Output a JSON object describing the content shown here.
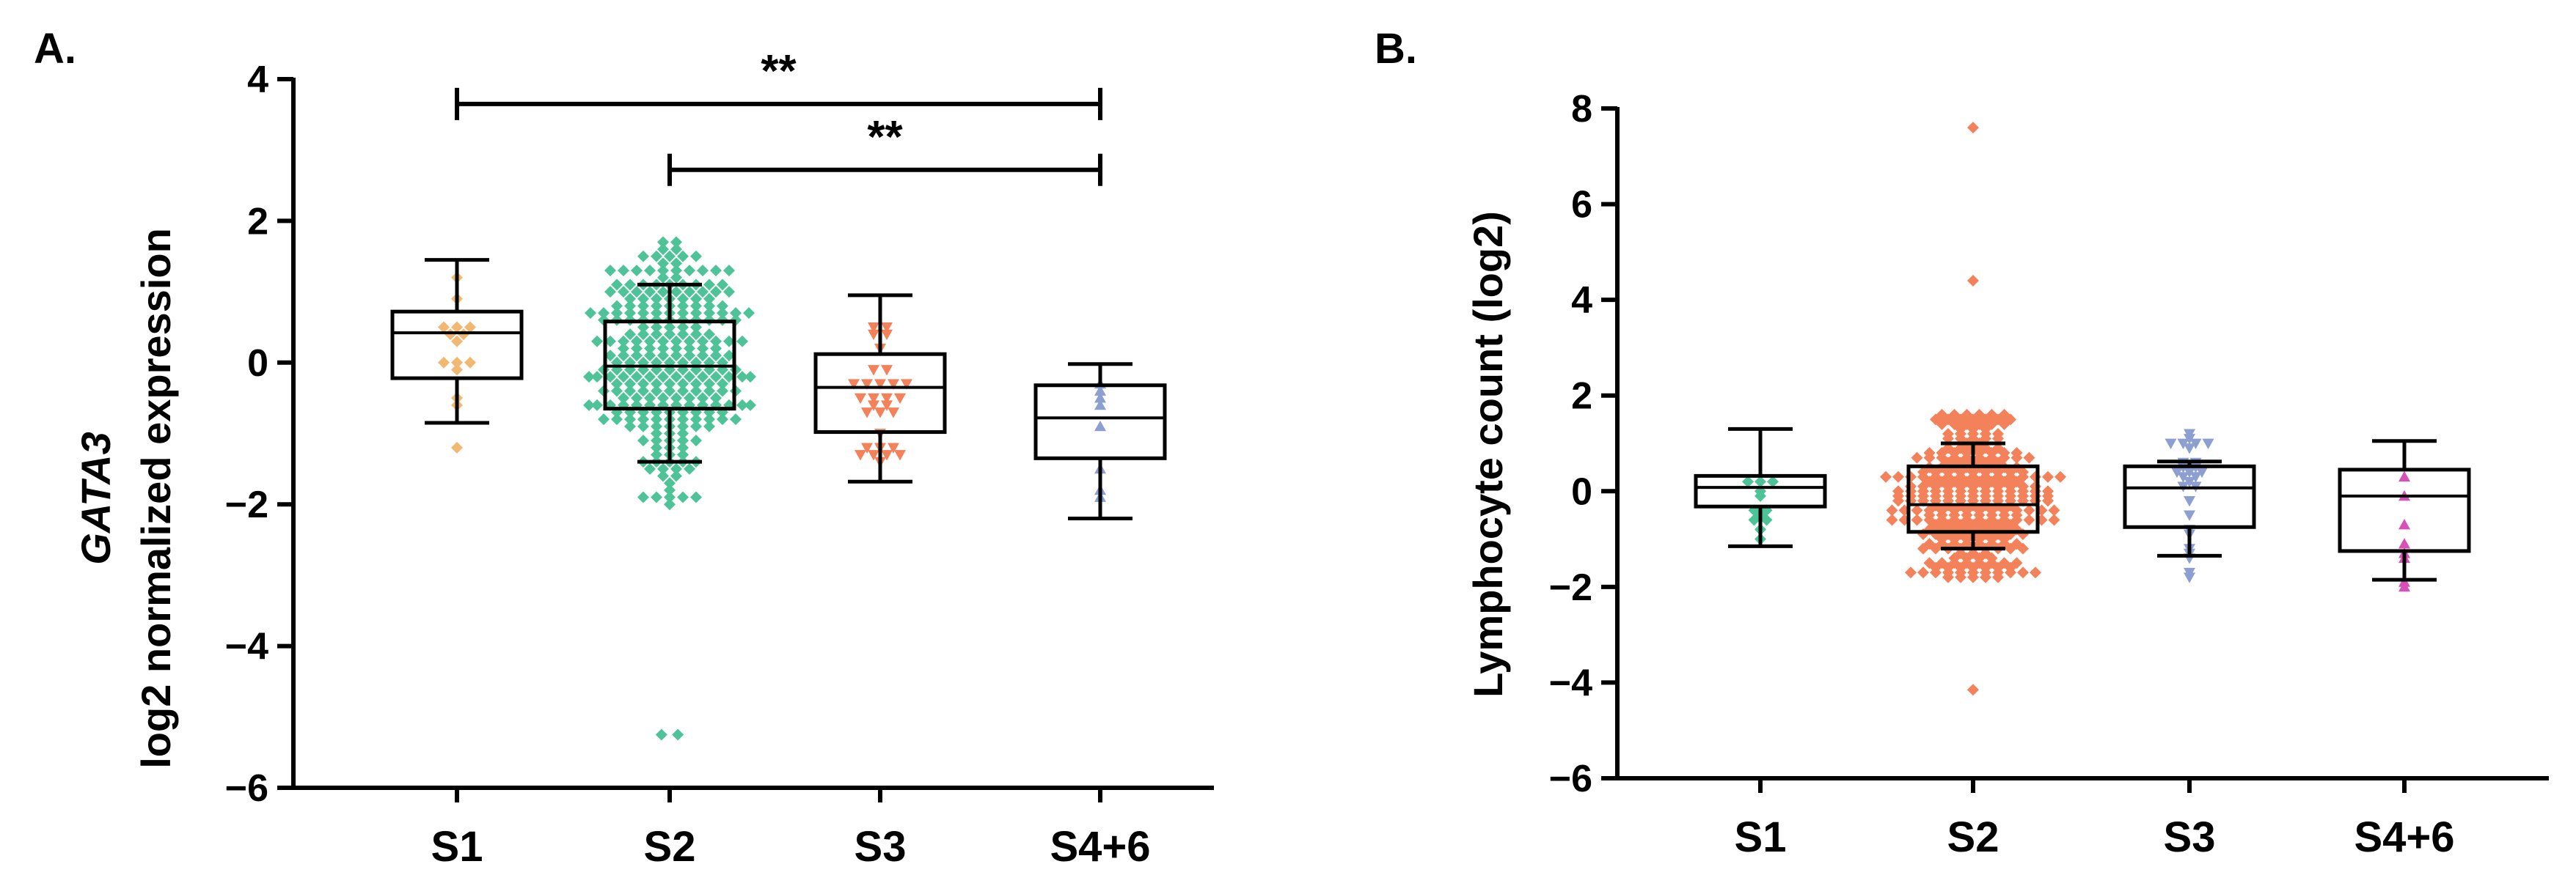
{
  "chart_data": [
    {
      "type": "boxplot",
      "panel_label": "A.",
      "title": "",
      "ylabel_gene": "GATA3",
      "ylabel": "log2 normalized expression",
      "ylim": [
        -6,
        4
      ],
      "yticks": [
        "4",
        "2",
        "0",
        "−2",
        "−4",
        "−6"
      ],
      "ytick_values": [
        4,
        2,
        0,
        -2,
        -4,
        -6
      ],
      "categories": [
        "S1",
        "S2",
        "S3",
        "S4+6"
      ],
      "grid": false,
      "series": [
        {
          "category": "S1",
          "color": "#f0b873",
          "marker": "diamond",
          "whisker_low": -0.85,
          "q1": -0.22,
          "median": 0.42,
          "q3": 0.72,
          "whisker_high": 1.45,
          "n_points": 15,
          "outliers": []
        },
        {
          "category": "S2",
          "color": "#4fc398",
          "marker": "diamond",
          "whisker_low": -1.4,
          "q1": -0.65,
          "median": -0.05,
          "q3": 0.58,
          "whisker_high": 1.1,
          "n_points": 260,
          "outliers": [
            -5.25
          ]
        },
        {
          "category": "S3",
          "color": "#f3815a",
          "marker": "triangle-down",
          "whisker_low": -1.68,
          "q1": -0.98,
          "median": -0.35,
          "q3": 0.12,
          "whisker_high": 0.95,
          "n_points": 30,
          "outliers": []
        },
        {
          "category": "S4+6",
          "color": "#8d9fd0",
          "marker": "triangle-up",
          "whisker_low": -2.2,
          "q1": -1.35,
          "median": -0.78,
          "q3": -0.32,
          "whisker_high": -0.02,
          "n_points": 8,
          "outliers": []
        }
      ],
      "annotations": [
        {
          "label": "**",
          "from": "S1",
          "to": "S4+6",
          "y": 3.65
        },
        {
          "label": "**",
          "from": "S2",
          "to": "S4+6",
          "y": 2.72
        }
      ]
    },
    {
      "type": "boxplot",
      "panel_label": "B.",
      "title": "",
      "ylabel": "Lymphocyte count (log2)",
      "ylim": [
        -6,
        8
      ],
      "yticks": [
        "8",
        "6",
        "4",
        "2",
        "0",
        "−2",
        "−4",
        "−6"
      ],
      "ytick_values": [
        8,
        6,
        4,
        2,
        0,
        -2,
        -4,
        -6
      ],
      "categories": [
        "S1",
        "S2",
        "S3",
        "S4+6"
      ],
      "grid": false,
      "series": [
        {
          "category": "S1",
          "color": "#4fc398",
          "marker": "diamond",
          "whisker_low": -1.15,
          "q1": -0.32,
          "median": 0.08,
          "q3": 0.32,
          "whisker_high": 1.3,
          "n_points": 12,
          "outliers": []
        },
        {
          "category": "S2",
          "color": "#f3815a",
          "marker": "diamond",
          "whisker_low": -1.2,
          "q1": -0.85,
          "median": -0.28,
          "q3": 0.52,
          "whisker_high": 1.0,
          "n_points": 280,
          "outliers": [
            7.6,
            4.4,
            -4.15
          ]
        },
        {
          "category": "S3",
          "color": "#8d9fd0",
          "marker": "triangle-down",
          "whisker_low": -1.35,
          "q1": -0.75,
          "median": 0.07,
          "q3": 0.52,
          "whisker_high": 0.62,
          "n_points": 28,
          "outliers": []
        },
        {
          "category": "S4+6",
          "color": "#d84fb8",
          "marker": "triangle-up",
          "whisker_low": -1.85,
          "q1": -1.25,
          "median": -0.1,
          "q3": 0.45,
          "whisker_high": 1.05,
          "n_points": 8,
          "outliers": []
        }
      ],
      "annotations": []
    }
  ]
}
